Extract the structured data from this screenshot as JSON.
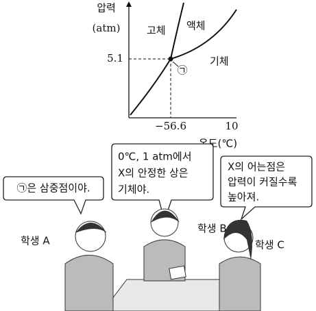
{
  "phase_diagram": {
    "y_axis_label": "압력",
    "y_axis_unit": "(atm)",
    "x_axis_label": "온도(℃)",
    "phase_labels": [
      "고체",
      "액체",
      "기체"
    ],
    "y_tick": "5.1",
    "x_ticks": [
      "−56.6",
      "10"
    ],
    "point_label": "㉠"
  },
  "speech_bubbles": [
    {
      "lines": [
        "㉠은 삼중점이야."
      ]
    },
    {
      "lines": [
        "0℃, 1 atm에서",
        "X의 안정한 상은",
        "기체야."
      ]
    },
    {
      "lines": [
        "X의 어는점은",
        "압력이 커질수록",
        "높아져."
      ]
    }
  ],
  "students": [
    "학생 A",
    "학생 B",
    "학생 C"
  ]
}
